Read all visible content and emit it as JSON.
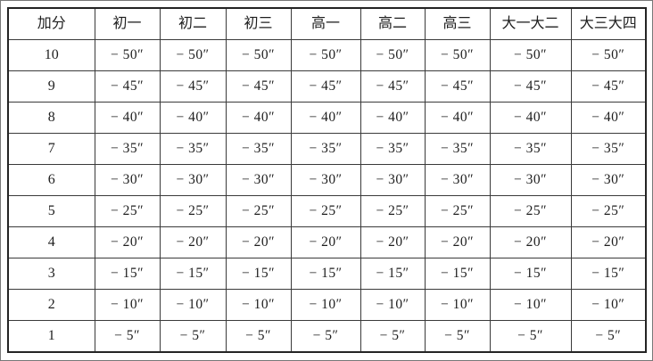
{
  "table": {
    "columns": [
      "加分",
      "初一",
      "初二",
      "初三",
      "高一",
      "高二",
      "高三",
      "大一大二",
      "大三大四"
    ],
    "rows": [
      {
        "score": "10",
        "cells": [
          "− 50″",
          "− 50″",
          "− 50″",
          "− 50″",
          "− 50″",
          "− 50″",
          "− 50″",
          "− 50″"
        ]
      },
      {
        "score": "9",
        "cells": [
          "− 45″",
          "− 45″",
          "− 45″",
          "− 45″",
          "− 45″",
          "− 45″",
          "− 45″",
          "− 45″"
        ]
      },
      {
        "score": "8",
        "cells": [
          "− 40″",
          "− 40″",
          "− 40″",
          "− 40″",
          "− 40″",
          "− 40″",
          "− 40″",
          "− 40″"
        ]
      },
      {
        "score": "7",
        "cells": [
          "− 35″",
          "− 35″",
          "− 35″",
          "− 35″",
          "− 35″",
          "− 35″",
          "− 35″",
          "− 35″"
        ]
      },
      {
        "score": "6",
        "cells": [
          "− 30″",
          "− 30″",
          "− 30″",
          "− 30″",
          "− 30″",
          "− 30″",
          "− 30″",
          "− 30″"
        ]
      },
      {
        "score": "5",
        "cells": [
          "− 25″",
          "− 25″",
          "− 25″",
          "− 25″",
          "− 25″",
          "− 25″",
          "− 25″",
          "− 25″"
        ]
      },
      {
        "score": "4",
        "cells": [
          "− 20″",
          "− 20″",
          "− 20″",
          "− 20″",
          "− 20″",
          "− 20″",
          "− 20″",
          "− 20″"
        ]
      },
      {
        "score": "3",
        "cells": [
          "− 15″",
          "− 15″",
          "− 15″",
          "− 15″",
          "− 15″",
          "− 15″",
          "− 15″",
          "− 15″"
        ]
      },
      {
        "score": "2",
        "cells": [
          "− 10″",
          "− 10″",
          "− 10″",
          "− 10″",
          "− 10″",
          "− 10″",
          "− 10″",
          "− 10″"
        ]
      },
      {
        "score": "1",
        "cells": [
          "− 5″",
          "− 5″",
          "− 5″",
          "− 5″",
          "− 5″",
          "− 5″",
          "− 5″",
          "− 5″"
        ]
      }
    ]
  }
}
